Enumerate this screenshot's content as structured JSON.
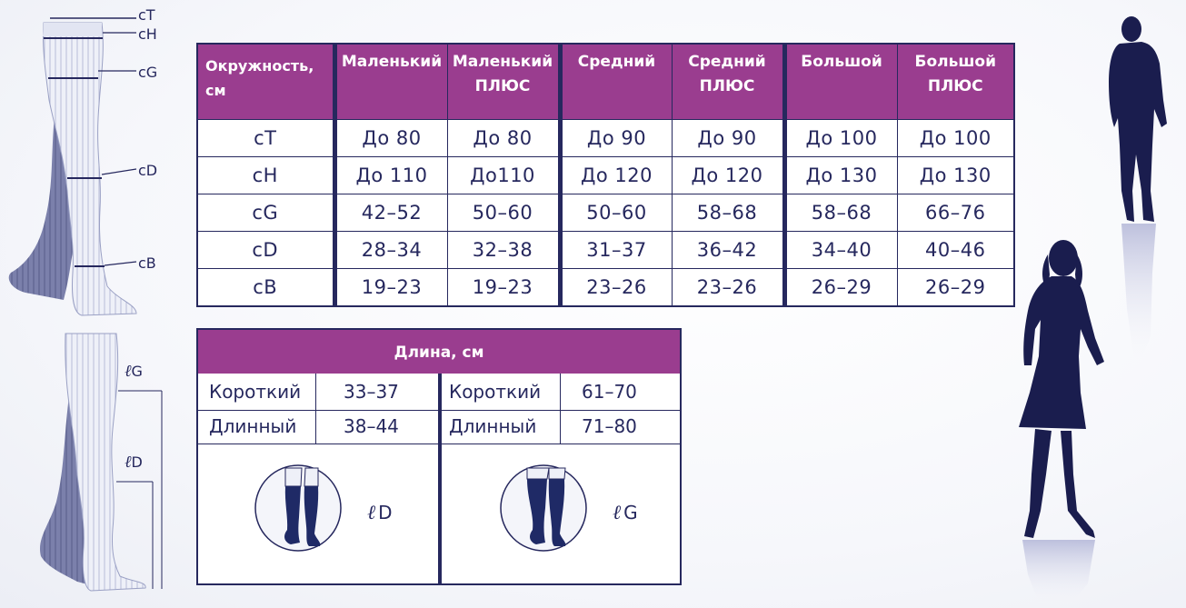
{
  "size_table": {
    "headers": [
      {
        "l1": "Окружность, см",
        "l2": ""
      },
      {
        "l1": "Маленький",
        "l2": ""
      },
      {
        "l1": "Маленький",
        "l2": "ПЛЮС"
      },
      {
        "l1": "Средний",
        "l2": ""
      },
      {
        "l1": "Средний",
        "l2": "ПЛЮС"
      },
      {
        "l1": "Большой",
        "l2": ""
      },
      {
        "l1": "Большой",
        "l2": "ПЛЮС"
      }
    ],
    "rows": [
      [
        "cT",
        "До 80",
        "До 80",
        "До 90",
        "До 90",
        "До 100",
        "До 100"
      ],
      [
        "cH",
        "До 110",
        "До110",
        "До 120",
        "До 120",
        "До 130",
        "До 130"
      ],
      [
        "cG",
        "42–52",
        "50–60",
        "50–60",
        "58–68",
        "58–68",
        "66–76"
      ],
      [
        "cD",
        "28–34",
        "32–38",
        "31–37",
        "36–42",
        "34–40",
        "40–46"
      ],
      [
        "cB",
        "19–23",
        "19–23",
        "23–26",
        "23–26",
        "26–29",
        "26–29"
      ]
    ]
  },
  "length_table": {
    "title": "Длина, см",
    "left": [
      {
        "label": "Короткий",
        "value": "33–37"
      },
      {
        "label": "Длинный",
        "value": "38–44"
      }
    ],
    "right": [
      {
        "label": "Короткий",
        "value": "61–70"
      },
      {
        "label": "Длинный",
        "value": "71–80"
      }
    ],
    "icon_left_label": {
      "letter": "ℓ",
      "code": "D"
    },
    "icon_right_label": {
      "letter": "ℓ",
      "code": "G"
    }
  },
  "leg_diagram_top_labels": [
    "cT",
    "cH",
    "cG",
    "cD",
    "cB"
  ],
  "leg_diagram_bottom_labels": [
    {
      "letter": "ℓ",
      "code": "G"
    },
    {
      "letter": "ℓ",
      "code": "D"
    }
  ],
  "colors": {
    "header_purple": "#9a3d8f",
    "navy": "#26285e",
    "stocking_fill": "#e4e7f3"
  },
  "icons": [
    "leg-stocking-diagram-icon",
    "leg-length-diagram-icon",
    "knee-stocking-icon",
    "thigh-stocking-icon",
    "man-silhouette-icon",
    "woman-silhouette-icon"
  ]
}
